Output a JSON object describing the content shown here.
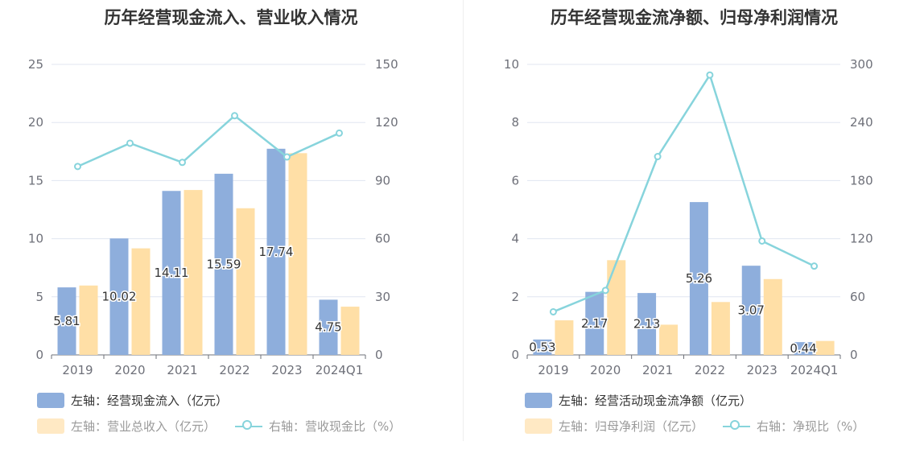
{
  "colors": {
    "bar_primary": "#8eaedc",
    "bar_secondary": "#ffdfa6",
    "line": "#87d4dc",
    "grid": "#e0e6f1",
    "axis_text": "#6e7079"
  },
  "chart_data": [
    {
      "type": "bar",
      "title": "历年经营现金流入、营业收入情况",
      "categories": [
        "2019",
        "2020",
        "2021",
        "2022",
        "2023",
        "2024Q1"
      ],
      "y_left": {
        "min": 0,
        "max": 25,
        "ticks": [
          "0",
          "5",
          "10",
          "15",
          "20",
          "25"
        ]
      },
      "y_right": {
        "min": 0,
        "max": 150,
        "ticks": [
          "0",
          "30",
          "60",
          "90",
          "120",
          "150"
        ]
      },
      "grid": true,
      "legend_position": "bottom-left",
      "series": [
        {
          "name": "左轴：经营现金流入（亿元）",
          "type": "bar",
          "axis": "left",
          "values": [
            5.81,
            10.02,
            14.11,
            15.59,
            17.74,
            4.75
          ],
          "labels": [
            "5.81",
            "10.02",
            "14.11",
            "15.59",
            "17.74",
            "4.75"
          ]
        },
        {
          "name": "左轴：营业总收入（亿元）",
          "type": "bar",
          "axis": "left",
          "values": [
            5.97,
            9.17,
            14.19,
            12.62,
            17.36,
            4.15
          ]
        },
        {
          "name": "右轴：营收现金比（%）",
          "type": "line",
          "axis": "right",
          "values": [
            97.3,
            109.3,
            99.4,
            123.5,
            102.2,
            114.5
          ]
        }
      ]
    },
    {
      "type": "bar",
      "title": "历年经营现金流净额、归母净利润情况",
      "categories": [
        "2019",
        "2020",
        "2021",
        "2022",
        "2023",
        "2024Q1"
      ],
      "y_left": {
        "min": 0,
        "max": 10,
        "ticks": [
          "0",
          "2",
          "4",
          "6",
          "8",
          "10"
        ]
      },
      "y_right": {
        "min": 0,
        "max": 300,
        "ticks": [
          "0",
          "60",
          "120",
          "180",
          "240",
          "300"
        ]
      },
      "grid": true,
      "legend_position": "bottom-left",
      "series": [
        {
          "name": "左轴：经营活动现金流净额（亿元）",
          "type": "bar",
          "axis": "left",
          "values": [
            0.53,
            2.17,
            2.13,
            5.26,
            3.07,
            0.44
          ],
          "labels": [
            "0.53",
            "2.17",
            "2.13",
            "5.26",
            "3.07",
            "0.44"
          ]
        },
        {
          "name": "左轴：归母净利润（亿元）",
          "type": "bar",
          "axis": "left",
          "values": [
            1.19,
            3.26,
            1.04,
            1.82,
            2.61,
            0.48
          ]
        },
        {
          "name": "右轴：净现比（%）",
          "type": "line",
          "axis": "right",
          "values": [
            44.5,
            66.6,
            204.8,
            289.0,
            117.6,
            91.7
          ]
        }
      ]
    }
  ]
}
